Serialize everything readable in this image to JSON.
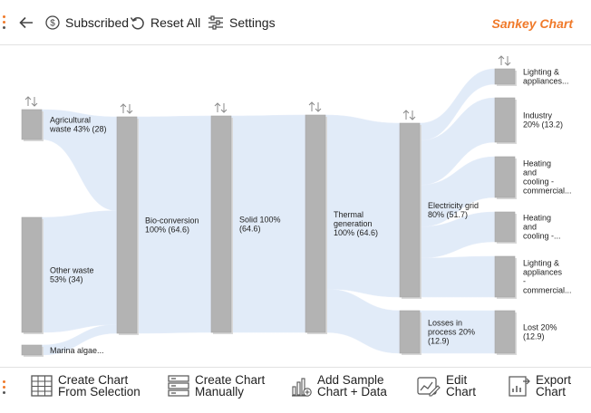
{
  "toolbar": {
    "back_icon": "arrow-left-icon",
    "subscribed_label": "Subscribed",
    "reset_label": "Reset All",
    "settings_label": "Settings",
    "brand": "Sankey Chart"
  },
  "colors": {
    "accent": "#f07a2a",
    "node": "#b3b3b3",
    "link": "#dce8f7",
    "text": "#222222"
  },
  "chart_data": {
    "type": "sankey",
    "unit": "",
    "nodes": [
      {
        "id": "agri",
        "label": "Agricultural waste 43% (28)",
        "lines": [
          "Agricultural",
          "waste 43% (28)"
        ],
        "value": 28,
        "percent": 43
      },
      {
        "id": "other",
        "label": "Other waste 53% (34)",
        "lines": [
          "Other waste",
          "53% (34)"
        ],
        "value": 34,
        "percent": 53
      },
      {
        "id": "marina",
        "label": "Marina algae...",
        "lines": [
          "Marina algae..."
        ],
        "value": 2.6
      },
      {
        "id": "bio",
        "label": "Bio-conversion 100% (64.6)",
        "lines": [
          "Bio-conversion",
          "100% (64.6)"
        ],
        "value": 64.6,
        "percent": 100
      },
      {
        "id": "solid",
        "label": "Solid 100% (64.6)",
        "lines": [
          "Solid 100%",
          "(64.6)"
        ],
        "value": 64.6,
        "percent": 100
      },
      {
        "id": "thermal",
        "label": "Thermal generation 100% (64.6)",
        "lines": [
          "Thermal",
          "generation",
          "100% (64.6)"
        ],
        "value": 64.6,
        "percent": 100
      },
      {
        "id": "grid",
        "label": "Electricity grid 80% (51.7)",
        "lines": [
          "Electricity grid",
          "80% (51.7)"
        ],
        "value": 51.7,
        "percent": 80
      },
      {
        "id": "losses",
        "label": "Losses in process 20% (12.9)",
        "lines": [
          "Losses in",
          "process 20%",
          "(12.9)"
        ],
        "value": 12.9,
        "percent": 20
      },
      {
        "id": "light_home",
        "label": "Lighting & appliances...",
        "lines": [
          "Lighting &",
          "appliances..."
        ]
      },
      {
        "id": "industry",
        "label": "Industry 20% (13.2)",
        "lines": [
          "Industry",
          "20% (13.2)"
        ],
        "value": 13.2,
        "percent": 20
      },
      {
        "id": "heat_comm",
        "label": "Heating and cooling - commercial...",
        "lines": [
          "Heating",
          "and",
          "cooling -",
          "commercial..."
        ]
      },
      {
        "id": "heat_home",
        "label": "Heating and cooling -...",
        "lines": [
          "Heating",
          "and",
          "cooling -..."
        ]
      },
      {
        "id": "light_comm",
        "label": "Lighting & appliances - commercial...",
        "lines": [
          "Lighting &",
          "appliances",
          "-",
          "commercial..."
        ]
      },
      {
        "id": "lost",
        "label": "Lost 20% (12.9)",
        "lines": [
          "Lost 20%",
          "(12.9)"
        ],
        "value": 12.9,
        "percent": 20
      }
    ],
    "links": [
      {
        "source": "agri",
        "target": "bio",
        "value": 28
      },
      {
        "source": "other",
        "target": "bio",
        "value": 34
      },
      {
        "source": "marina",
        "target": "bio",
        "value": 2.6
      },
      {
        "source": "bio",
        "target": "solid",
        "value": 64.6
      },
      {
        "source": "solid",
        "target": "thermal",
        "value": 64.6
      },
      {
        "source": "thermal",
        "target": "grid",
        "value": 51.7
      },
      {
        "source": "thermal",
        "target": "losses",
        "value": 12.9
      },
      {
        "source": "grid",
        "target": "light_home",
        "value": 5.2
      },
      {
        "source": "grid",
        "target": "industry",
        "value": 13.2
      },
      {
        "source": "grid",
        "target": "heat_comm",
        "value": 12.4
      },
      {
        "source": "grid",
        "target": "heat_home",
        "value": 9.3
      },
      {
        "source": "grid",
        "target": "light_comm",
        "value": 11.6
      },
      {
        "source": "losses",
        "target": "lost",
        "value": 12.9
      }
    ]
  },
  "bottombar": {
    "create_selection": "Create Chart\nFrom Selection",
    "create_manual": "Create Chart\nManually",
    "add_sample": "Add Sample\nChart + Data",
    "edit_chart": "Edit\nChart",
    "export_chart": "Export\nChart"
  }
}
